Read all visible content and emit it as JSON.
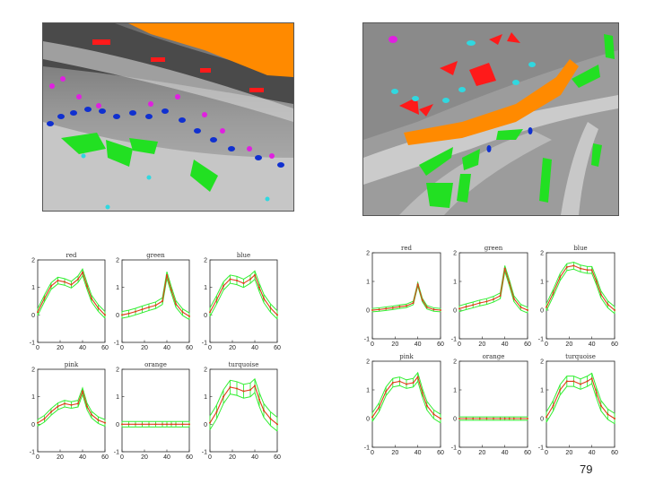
{
  "page_number": "79",
  "colors": {
    "red": "#ff1a1a",
    "green": "#22e022",
    "blue": "#1030d0",
    "pink": "#e020e0",
    "orange": "#ff8a00",
    "turquoise": "#30d8e0",
    "curve": "#e03a1a",
    "band": "#33ee33"
  },
  "chart_data": [
    {
      "type": "line",
      "group": "left",
      "panels": [
        {
          "title": "red",
          "x": [
            0,
            6,
            12,
            18,
            24,
            30,
            36,
            40,
            44,
            48,
            54,
            60
          ],
          "y": [
            0.1,
            0.6,
            1.05,
            1.25,
            1.2,
            1.1,
            1.3,
            1.55,
            1.05,
            0.6,
            0.25,
            0.0
          ],
          "ylim": [
            -1,
            2
          ],
          "xlim": [
            0,
            60
          ],
          "band": 0.12
        },
        {
          "title": "green",
          "x": [
            0,
            6,
            12,
            18,
            24,
            30,
            36,
            40,
            44,
            48,
            54,
            60
          ],
          "y": [
            0.0,
            0.05,
            0.12,
            0.2,
            0.28,
            0.35,
            0.5,
            1.45,
            0.9,
            0.4,
            0.1,
            -0.05
          ],
          "ylim": [
            -1,
            2
          ],
          "xlim": [
            0,
            60
          ],
          "band": 0.12
        },
        {
          "title": "blue",
          "x": [
            0,
            6,
            12,
            18,
            24,
            30,
            36,
            40,
            44,
            48,
            54,
            60
          ],
          "y": [
            0.1,
            0.55,
            1.05,
            1.3,
            1.25,
            1.15,
            1.3,
            1.45,
            1.0,
            0.6,
            0.25,
            0.0
          ],
          "ylim": [
            -1,
            2
          ],
          "xlim": [
            0,
            60
          ],
          "band": 0.15
        },
        {
          "title": "pink",
          "x": [
            0,
            6,
            12,
            18,
            24,
            30,
            36,
            40,
            44,
            48,
            54,
            60
          ],
          "y": [
            0.05,
            0.2,
            0.45,
            0.65,
            0.75,
            0.7,
            0.75,
            1.2,
            0.65,
            0.35,
            0.15,
            0.05
          ],
          "ylim": [
            -1,
            2
          ],
          "xlim": [
            0,
            60
          ],
          "band": 0.12
        },
        {
          "title": "orange",
          "x": [
            0,
            6,
            12,
            18,
            24,
            30,
            36,
            40,
            44,
            48,
            54,
            60
          ],
          "y": [
            0,
            0,
            0,
            0,
            0,
            0,
            0,
            0,
            0,
            0,
            0,
            0
          ],
          "ylim": [
            -1,
            2
          ],
          "xlim": [
            0,
            60
          ],
          "band": 0.1
        },
        {
          "title": "turquoise",
          "x": [
            0,
            6,
            12,
            18,
            24,
            30,
            36,
            40,
            44,
            48,
            54,
            60
          ],
          "y": [
            0.05,
            0.45,
            1.0,
            1.35,
            1.3,
            1.2,
            1.25,
            1.4,
            0.9,
            0.5,
            0.2,
            0.0
          ],
          "ylim": [
            -1,
            2
          ],
          "xlim": [
            0,
            60
          ],
          "band": 0.25
        }
      ]
    },
    {
      "type": "line",
      "group": "right",
      "panels": [
        {
          "title": "red",
          "x": [
            0,
            6,
            12,
            18,
            24,
            30,
            36,
            40,
            44,
            48,
            54,
            60
          ],
          "y": [
            0.0,
            0.02,
            0.05,
            0.08,
            0.12,
            0.15,
            0.25,
            0.9,
            0.35,
            0.1,
            0.02,
            0.0
          ],
          "ylim": [
            -1,
            2
          ],
          "xlim": [
            0,
            60
          ],
          "band": 0.06
        },
        {
          "title": "green",
          "x": [
            0,
            6,
            12,
            18,
            24,
            30,
            36,
            40,
            44,
            48,
            54,
            60
          ],
          "y": [
            0.05,
            0.12,
            0.18,
            0.25,
            0.3,
            0.38,
            0.5,
            1.45,
            0.95,
            0.4,
            0.1,
            0.0
          ],
          "ylim": [
            -1,
            2
          ],
          "xlim": [
            0,
            60
          ],
          "band": 0.1
        },
        {
          "title": "blue",
          "x": [
            0,
            6,
            12,
            18,
            24,
            30,
            36,
            40,
            44,
            48,
            54,
            60
          ],
          "y": [
            0.1,
            0.6,
            1.15,
            1.5,
            1.55,
            1.45,
            1.4,
            1.4,
            1.0,
            0.55,
            0.2,
            0.0
          ],
          "ylim": [
            -1,
            2
          ],
          "xlim": [
            0,
            60
          ],
          "band": 0.12
        },
        {
          "title": "pink",
          "x": [
            0,
            6,
            12,
            18,
            24,
            30,
            36,
            40,
            44,
            48,
            54,
            60
          ],
          "y": [
            0.05,
            0.4,
            0.95,
            1.25,
            1.3,
            1.2,
            1.25,
            1.45,
            0.9,
            0.45,
            0.15,
            0.0
          ],
          "ylim": [
            -1,
            2
          ],
          "xlim": [
            0,
            60
          ],
          "band": 0.15
        },
        {
          "title": "orange",
          "x": [
            0,
            6,
            12,
            18,
            24,
            30,
            36,
            40,
            44,
            48,
            54,
            60
          ],
          "y": [
            0,
            0,
            0,
            0,
            0,
            0,
            0,
            0,
            0,
            0,
            0,
            0
          ],
          "ylim": [
            -1,
            2
          ],
          "xlim": [
            0,
            60
          ],
          "band": 0.06
        },
        {
          "title": "turquoise",
          "x": [
            0,
            6,
            12,
            18,
            24,
            30,
            36,
            40,
            44,
            48,
            54,
            60
          ],
          "y": [
            0.05,
            0.45,
            1.0,
            1.3,
            1.3,
            1.2,
            1.3,
            1.4,
            0.9,
            0.45,
            0.15,
            0.0
          ],
          "ylim": [
            -1,
            2
          ],
          "xlim": [
            0,
            60
          ],
          "band": 0.18
        }
      ]
    }
  ]
}
